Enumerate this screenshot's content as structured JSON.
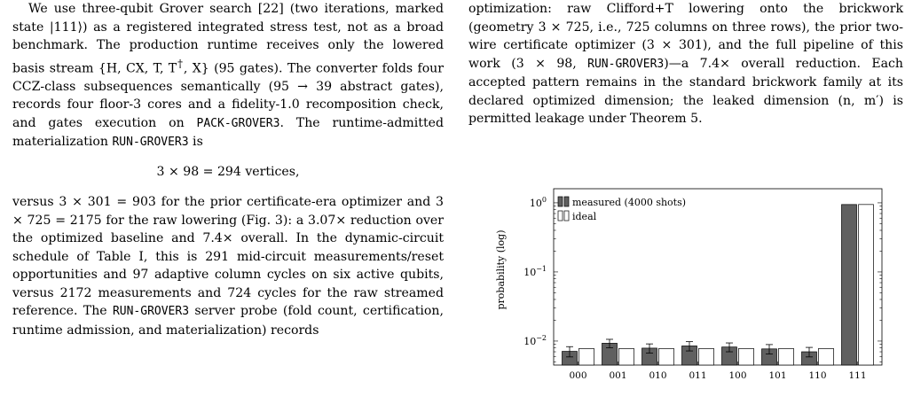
{
  "left_column": {
    "para1": {
      "p1": "We use three-qubit Grover search [22] (two iterations, marked state |111⟩) as a registered integrated stress test, not as a broad benchmark. The production runtime receives only the lowered basis stream {H, CX, T, T",
      "p1_sup": "†",
      "p2": ", X} (95 gates). The converter folds four CCZ-class subsequences semantically (95 → 39 abstract gates), records four floor-3 cores and a fidelity-1.0 recomposition check, and gates execution on ",
      "code1": "PACK-GROVER3",
      "p3": ". The runtime-admitted materialization ",
      "code2": "RUN-GROVER3",
      "p4": " is"
    },
    "equation": "3 × 98 = 294 vertices,",
    "para2": {
      "p1": "versus 3 × 301 = 903 for the prior certificate-era optimizer and 3 × 725 = 2175 for the raw lowering (Fig. 3): a 3.07× reduction over the optimized baseline and 7.4× overall. In the dynamic-circuit schedule of Table I, this is 291 mid-circuit measurements/reset opportunities and 97 adaptive column cycles on six active qubits, versus 2172 measurements and 724 cycles for the raw streamed reference. The ",
      "code1": "RUN-GROVER3",
      "p2": " server probe (fold count, certification, runtime admission, and materialization) records"
    }
  },
  "right_column": {
    "caption": {
      "p1": "optimization: raw Clifford+T lowering onto the brickwork (geometry 3 × 725, i.e., 725 columns on three rows), the prior two-wire certificate optimizer (3 × 301), and the full pipeline of this work (3 × 98, ",
      "code1": "RUN-GROVER3",
      "p2": ")—a 7.4× overall reduction. Each accepted pattern remains in the standard brickwork family at its declared optimized dimension; the leaked dimension (n, m′) is permitted leakage under Theorem 5."
    }
  },
  "chart_data": {
    "type": "bar",
    "yscale": "log",
    "ylabel": "probability (log)",
    "ylim": [
      0.0045,
      1.6
    ],
    "yticks": [
      {
        "v": 0.01,
        "label": "10",
        "exp": "−2"
      },
      {
        "v": 0.1,
        "label": "10",
        "exp": "−1"
      },
      {
        "v": 1,
        "label": "10",
        "exp": "0"
      }
    ],
    "categories": [
      "000",
      "001",
      "010",
      "011",
      "100",
      "101",
      "110",
      "111"
    ],
    "series": [
      {
        "name": "measured (4000 shots)",
        "fill": "#606060",
        "values": [
          0.0071,
          0.0093,
          0.0079,
          0.0085,
          0.0082,
          0.0077,
          0.007,
          0.945
        ],
        "err": [
          0.0012,
          0.0013,
          0.0012,
          0.0013,
          0.0012,
          0.0012,
          0.0011,
          0
        ]
      },
      {
        "name": "ideal",
        "fill": "#ffffff",
        "values": [
          0.0078,
          0.0078,
          0.0078,
          0.0078,
          0.0078,
          0.0078,
          0.0078,
          0.9453
        ]
      }
    ],
    "legend_position": "top-left",
    "grid": false
  }
}
